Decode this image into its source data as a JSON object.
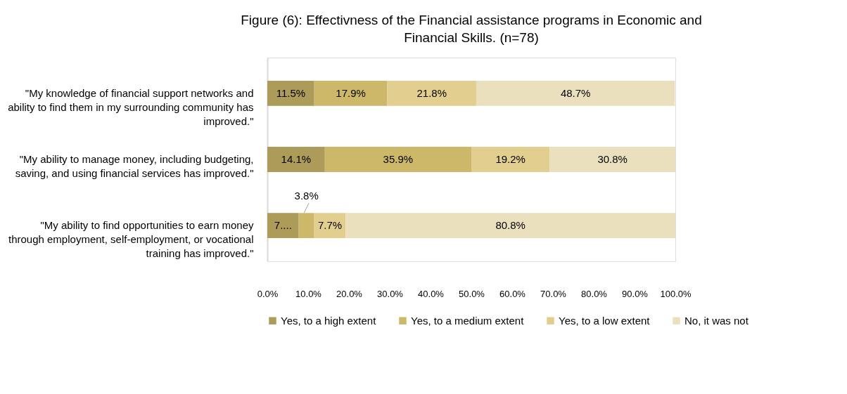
{
  "chart_data": {
    "type": "bar",
    "orientation": "horizontal",
    "stacked": true,
    "title": "Figure (6): Effectivness of the Financial assistance programs in Economic and Financial Skills. (n=78)",
    "categories": [
      "\"My knowledge of financial support networks and ability to find them in my surrounding community has improved.\"",
      "\"My ability to manage money, including budgeting, saving, and using financial services has improved.\"",
      "\"My ability to find opportunities to earn money through employment, self-employment, or vocational training has improved.\""
    ],
    "series": [
      {
        "name": "Yes, to a high extent",
        "color": "#ad9b5a",
        "values": [
          11.5,
          14.1,
          7.7
        ],
        "value_labels": [
          "11.5%",
          "14.1%",
          "7...."
        ]
      },
      {
        "name": "Yes, to a medium extent",
        "color": "#cdb86a",
        "values": [
          17.9,
          35.9,
          3.8
        ],
        "value_labels": [
          "17.9%",
          "35.9%",
          "3.8%"
        ]
      },
      {
        "name": "Yes, to a low extent",
        "color": "#e2cf8f",
        "values": [
          21.8,
          19.2,
          7.7
        ],
        "value_labels": [
          "21.8%",
          "19.2%",
          "7.7%"
        ]
      },
      {
        "name": "No, it was not",
        "color": "#ebe0bd",
        "values": [
          48.7,
          30.8,
          80.8
        ],
        "value_labels": [
          "48.7%",
          "30.8%",
          "80.8%"
        ]
      }
    ],
    "xlim": [
      0,
      100
    ],
    "xticks": [
      {
        "value": 0,
        "label": "0.0%"
      },
      {
        "value": 10,
        "label": "10.0%"
      },
      {
        "value": 20,
        "label": "20.0%"
      },
      {
        "value": 30,
        "label": "30.0%"
      },
      {
        "value": 40,
        "label": "40.0%"
      },
      {
        "value": 50,
        "label": "50.0%"
      },
      {
        "value": 60,
        "label": "60.0%"
      },
      {
        "value": 70,
        "label": "70.0%"
      },
      {
        "value": 80,
        "label": "80.0%"
      },
      {
        "value": 90,
        "label": "90.0%"
      },
      {
        "value": 100,
        "label": "100.0%"
      }
    ],
    "grid": false,
    "legend": "bottom"
  }
}
